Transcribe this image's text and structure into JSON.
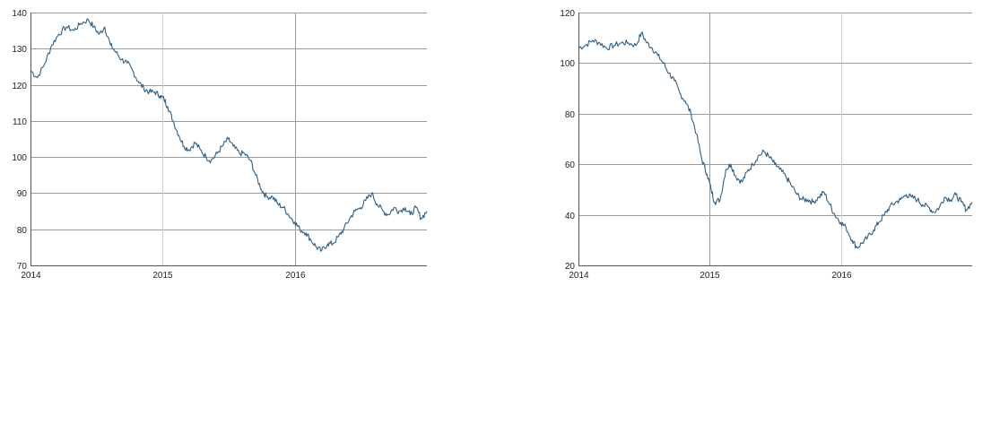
{
  "colors": {
    "series": "#2f5f85"
  },
  "chart_data": [
    {
      "type": "line",
      "title": "",
      "xlabel": "",
      "ylabel": "",
      "grid": true,
      "xlim": [
        "2014-01-01",
        "2016-12-31"
      ],
      "ylim": [
        70,
        140
      ],
      "xticks": [
        "2014",
        "2015",
        "2016"
      ],
      "yticks": [
        "70",
        "80",
        "90",
        "100",
        "110",
        "120",
        "130",
        "140"
      ],
      "series": [
        {
          "x": [
            "2014-01-01",
            "2014-01-20",
            "2014-02-10",
            "2014-03-01",
            "2014-03-20",
            "2014-04-10",
            "2014-05-01",
            "2014-05-20",
            "2014-06-10",
            "2014-06-25",
            "2014-07-10",
            "2014-07-25",
            "2014-08-10",
            "2014-08-25",
            "2014-09-10",
            "2014-09-25",
            "2014-10-10",
            "2014-10-25",
            "2014-11-10",
            "2014-11-25",
            "2014-12-10",
            "2014-12-25",
            "2015-01-05",
            "2015-01-15",
            "2015-01-30",
            "2015-02-15",
            "2015-03-01",
            "2015-03-15",
            "2015-04-01",
            "2015-04-15",
            "2015-05-01",
            "2015-05-15",
            "2015-06-01",
            "2015-06-15",
            "2015-07-01",
            "2015-07-15",
            "2015-08-01",
            "2015-08-15",
            "2015-09-01",
            "2015-09-15",
            "2015-10-01",
            "2015-10-15",
            "2015-11-01",
            "2015-11-15",
            "2015-12-01",
            "2015-12-15",
            "2016-01-01",
            "2016-01-15",
            "2016-02-01",
            "2016-02-15",
            "2016-03-01",
            "2016-03-15",
            "2016-04-01",
            "2016-04-15",
            "2016-05-01",
            "2016-05-15",
            "2016-06-01",
            "2016-06-15",
            "2016-07-01",
            "2016-07-15",
            "2016-08-01",
            "2016-08-15",
            "2016-09-01",
            "2016-09-15",
            "2016-10-01",
            "2016-10-15",
            "2016-11-01",
            "2016-11-15",
            "2016-12-01",
            "2016-12-15",
            "2016-12-31"
          ],
          "y": [
            124,
            122,
            126,
            131,
            134,
            136,
            135,
            137,
            138,
            136,
            134,
            136,
            131,
            129,
            127,
            126,
            124,
            121,
            119,
            118,
            118,
            117,
            116,
            114,
            110,
            106,
            103,
            102,
            104,
            102,
            100,
            99,
            101,
            103,
            105,
            103,
            101,
            101,
            99,
            95,
            91,
            89,
            89,
            87,
            86,
            84,
            82,
            80,
            79,
            77,
            75,
            74,
            76,
            76,
            78,
            80,
            83,
            85,
            86,
            88,
            90,
            87,
            85,
            84,
            86,
            85,
            86,
            84,
            86,
            83,
            85
          ]
        }
      ]
    },
    {
      "type": "line",
      "title": "",
      "xlabel": "",
      "ylabel": "",
      "grid": true,
      "xlim": [
        "2014-01-01",
        "2016-12-31"
      ],
      "ylim": [
        20,
        120
      ],
      "xticks": [
        "2014",
        "2015",
        "2016"
      ],
      "yticks": [
        "20",
        "40",
        "60",
        "80",
        "100",
        "120"
      ],
      "series": [
        {
          "x": [
            "2014-01-01",
            "2014-01-20",
            "2014-02-10",
            "2014-03-01",
            "2014-03-20",
            "2014-04-10",
            "2014-05-01",
            "2014-05-20",
            "2014-06-10",
            "2014-06-25",
            "2014-07-10",
            "2014-07-25",
            "2014-08-10",
            "2014-08-25",
            "2014-09-10",
            "2014-09-25",
            "2014-10-10",
            "2014-10-25",
            "2014-11-10",
            "2014-11-25",
            "2014-12-10",
            "2014-12-25",
            "2015-01-05",
            "2015-01-15",
            "2015-01-30",
            "2015-02-15",
            "2015-03-01",
            "2015-03-15",
            "2015-04-01",
            "2015-04-15",
            "2015-05-01",
            "2015-05-15",
            "2015-06-01",
            "2015-06-15",
            "2015-07-01",
            "2015-07-15",
            "2015-08-01",
            "2015-08-15",
            "2015-09-01",
            "2015-09-15",
            "2015-10-01",
            "2015-10-15",
            "2015-11-01",
            "2015-11-15",
            "2015-12-01",
            "2015-12-15",
            "2016-01-01",
            "2016-01-15",
            "2016-02-01",
            "2016-02-15",
            "2016-03-01",
            "2016-03-15",
            "2016-04-01",
            "2016-04-15",
            "2016-05-01",
            "2016-05-15",
            "2016-06-01",
            "2016-06-15",
            "2016-07-01",
            "2016-07-15",
            "2016-08-01",
            "2016-08-15",
            "2016-09-01",
            "2016-09-15",
            "2016-10-01",
            "2016-10-15",
            "2016-11-01",
            "2016-11-15",
            "2016-12-01",
            "2016-12-15",
            "2016-12-31"
          ],
          "y": [
            106,
            107,
            109,
            108,
            106,
            107,
            108,
            108,
            107,
            112,
            108,
            106,
            103,
            100,
            96,
            93,
            88,
            85,
            80,
            72,
            62,
            56,
            50,
            45,
            46,
            58,
            60,
            55,
            53,
            57,
            60,
            63,
            65,
            63,
            60,
            58,
            55,
            52,
            48,
            46,
            46,
            45,
            47,
            49,
            44,
            40,
            37,
            35,
            30,
            27,
            29,
            31,
            34,
            37,
            40,
            43,
            45,
            46,
            48,
            47,
            46,
            44,
            43,
            41,
            43,
            47,
            46,
            48,
            45,
            42,
            45
          ]
        }
      ]
    }
  ]
}
